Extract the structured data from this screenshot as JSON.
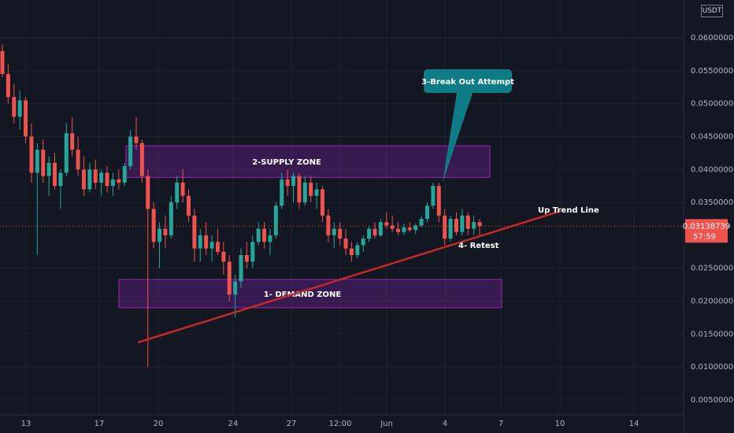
{
  "chart_data": {
    "type": "candlestick",
    "currency": "USDT",
    "y_axis": {
      "ticks": [
        "0.06000000",
        "0.05500000",
        "0.05000000",
        "0.04500000",
        "0.04000000",
        "0.03500000",
        "0.02500000",
        "0.02000000",
        "0.01500000",
        "0.01000000",
        "0.00500000"
      ],
      "range": [
        0.0,
        0.066
      ]
    },
    "x_axis": {
      "ticks": [
        "13",
        "17",
        "20",
        "24",
        "27",
        "12:00",
        "Jun",
        "4",
        "7",
        "10",
        "14"
      ]
    },
    "last_price": {
      "value": "0.03138739",
      "countdown": "57:59",
      "price": 0.03138739
    },
    "zones": [
      {
        "label": "2-SUPPLY ZONE",
        "low": 0.0388,
        "high": 0.0436,
        "color": "#7b1fa2"
      },
      {
        "label": "1- DEMAND ZONE",
        "low": 0.019,
        "high": 0.0233,
        "color": "#7b1fa2"
      }
    ],
    "annotations": {
      "callout": "3-Break Out Attempt",
      "trend_line": "Up Trend Line",
      "retest": "4-   Retest"
    },
    "trend_line_color": "#c62828",
    "up_color": "#26a69a",
    "down_color": "#ef5350",
    "candles": [
      [
        0.058,
        0.059,
        0.054,
        0.0545
      ],
      [
        0.0545,
        0.056,
        0.05,
        0.051
      ],
      [
        0.051,
        0.053,
        0.047,
        0.048
      ],
      [
        0.048,
        0.052,
        0.046,
        0.0505
      ],
      [
        0.0505,
        0.051,
        0.044,
        0.045
      ],
      [
        0.045,
        0.047,
        0.038,
        0.0395
      ],
      [
        0.0395,
        0.044,
        0.027,
        0.043
      ],
      [
        0.043,
        0.0445,
        0.038,
        0.039
      ],
      [
        0.039,
        0.042,
        0.036,
        0.041
      ],
      [
        0.041,
        0.0425,
        0.037,
        0.0375
      ],
      [
        0.0375,
        0.04,
        0.034,
        0.0395
      ],
      [
        0.0395,
        0.047,
        0.039,
        0.0455
      ],
      [
        0.0455,
        0.048,
        0.042,
        0.043
      ],
      [
        0.043,
        0.045,
        0.039,
        0.04
      ],
      [
        0.04,
        0.042,
        0.036,
        0.037
      ],
      [
        0.037,
        0.041,
        0.0365,
        0.04
      ],
      [
        0.04,
        0.0415,
        0.037,
        0.038
      ],
      [
        0.038,
        0.04,
        0.036,
        0.0395
      ],
      [
        0.0395,
        0.0405,
        0.0365,
        0.0375
      ],
      [
        0.0375,
        0.0395,
        0.036,
        0.0385
      ],
      [
        0.0385,
        0.04,
        0.037,
        0.038
      ],
      [
        0.038,
        0.041,
        0.0375,
        0.0405
      ],
      [
        0.0405,
        0.046,
        0.04,
        0.045
      ],
      [
        0.045,
        0.048,
        0.043,
        0.044
      ],
      [
        0.044,
        0.0445,
        0.038,
        0.039
      ],
      [
        0.039,
        0.04,
        0.01,
        0.034
      ],
      [
        0.034,
        0.035,
        0.028,
        0.029
      ],
      [
        0.029,
        0.032,
        0.025,
        0.031
      ],
      [
        0.031,
        0.033,
        0.028,
        0.03
      ],
      [
        0.03,
        0.036,
        0.0295,
        0.035
      ],
      [
        0.035,
        0.039,
        0.034,
        0.038
      ],
      [
        0.038,
        0.04,
        0.035,
        0.036
      ],
      [
        0.036,
        0.037,
        0.032,
        0.033
      ],
      [
        0.033,
        0.034,
        0.026,
        0.028
      ],
      [
        0.028,
        0.031,
        0.026,
        0.03
      ],
      [
        0.03,
        0.032,
        0.027,
        0.028
      ],
      [
        0.028,
        0.03,
        0.026,
        0.029
      ],
      [
        0.029,
        0.031,
        0.027,
        0.0275
      ],
      [
        0.0275,
        0.029,
        0.024,
        0.026
      ],
      [
        0.026,
        0.027,
        0.02,
        0.021
      ],
      [
        0.021,
        0.024,
        0.0175,
        0.023
      ],
      [
        0.023,
        0.028,
        0.022,
        0.027
      ],
      [
        0.027,
        0.029,
        0.025,
        0.026
      ],
      [
        0.026,
        0.03,
        0.025,
        0.029
      ],
      [
        0.029,
        0.032,
        0.0285,
        0.031
      ],
      [
        0.031,
        0.032,
        0.028,
        0.029
      ],
      [
        0.029,
        0.031,
        0.027,
        0.03
      ],
      [
        0.03,
        0.035,
        0.0295,
        0.0345
      ],
      [
        0.0345,
        0.0395,
        0.034,
        0.0385
      ],
      [
        0.0385,
        0.04,
        0.036,
        0.0375
      ],
      [
        0.0375,
        0.0395,
        0.035,
        0.039
      ],
      [
        0.039,
        0.0395,
        0.034,
        0.035
      ],
      [
        0.035,
        0.039,
        0.0345,
        0.038
      ],
      [
        0.038,
        0.039,
        0.035,
        0.036
      ],
      [
        0.036,
        0.038,
        0.034,
        0.037
      ],
      [
        0.037,
        0.0375,
        0.032,
        0.033
      ],
      [
        0.033,
        0.034,
        0.029,
        0.03
      ],
      [
        0.03,
        0.032,
        0.028,
        0.031
      ],
      [
        0.031,
        0.032,
        0.0285,
        0.0295
      ],
      [
        0.0295,
        0.031,
        0.027,
        0.028
      ],
      [
        0.028,
        0.029,
        0.026,
        0.027
      ],
      [
        0.027,
        0.029,
        0.0265,
        0.0285
      ],
      [
        0.0285,
        0.03,
        0.0275,
        0.0295
      ],
      [
        0.0295,
        0.0315,
        0.029,
        0.031
      ],
      [
        0.031,
        0.032,
        0.0295,
        0.03
      ],
      [
        0.03,
        0.0325,
        0.0298,
        0.032
      ],
      [
        0.032,
        0.0335,
        0.031,
        0.0315
      ],
      [
        0.0315,
        0.033,
        0.0305,
        0.031
      ],
      [
        0.031,
        0.032,
        0.03,
        0.0305
      ],
      [
        0.0305,
        0.0318,
        0.03,
        0.0312
      ],
      [
        0.0312,
        0.032,
        0.0305,
        0.0308
      ],
      [
        0.0308,
        0.0318,
        0.0302,
        0.0315
      ],
      [
        0.0315,
        0.033,
        0.0312,
        0.0325
      ],
      [
        0.0325,
        0.035,
        0.032,
        0.0345
      ],
      [
        0.0345,
        0.038,
        0.034,
        0.0375
      ],
      [
        0.0375,
        0.038,
        0.032,
        0.033
      ],
      [
        0.033,
        0.034,
        0.0285,
        0.0295
      ],
      [
        0.0295,
        0.033,
        0.029,
        0.0325
      ],
      [
        0.0325,
        0.0335,
        0.03,
        0.0305
      ],
      [
        0.0305,
        0.034,
        0.03,
        0.033
      ],
      [
        0.033,
        0.0335,
        0.03,
        0.031
      ],
      [
        0.031,
        0.033,
        0.03,
        0.032
      ],
      [
        0.032,
        0.0325,
        0.03,
        0.0314
      ]
    ]
  }
}
